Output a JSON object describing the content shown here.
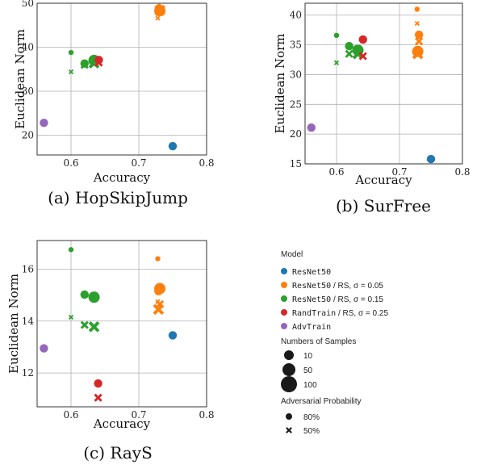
{
  "chart_data": [
    {
      "type": "scatter",
      "caption": "(a) HopSkipJump",
      "xlabel": "Accuracy",
      "ylabel": "Euclidean Norm",
      "xlim": [
        0.55,
        0.8
      ],
      "ylim": [
        15.5,
        50
      ],
      "xticks": [
        0.6,
        0.7,
        0.8
      ],
      "yticks": [
        20,
        30,
        40,
        50
      ],
      "grid": true,
      "points": [
        {
          "model": 0,
          "samples": 50,
          "prob": "80%",
          "x": 0.75,
          "y": 17.5
        },
        {
          "model": 4,
          "samples": 50,
          "prob": "80%",
          "x": 0.56,
          "y": 22.8
        },
        {
          "model": 1,
          "samples": 10,
          "prob": "80%",
          "x": 0.73,
          "y": 49.3
        },
        {
          "model": 1,
          "samples": 50,
          "prob": "80%",
          "x": 0.73,
          "y": 48.7
        },
        {
          "model": 1,
          "samples": 100,
          "prob": "80%",
          "x": 0.731,
          "y": 48.3
        },
        {
          "model": 1,
          "samples": 10,
          "prob": "50%",
          "x": 0.728,
          "y": 46.6
        },
        {
          "model": 1,
          "samples": 50,
          "prob": "50%",
          "x": 0.73,
          "y": 48.0
        },
        {
          "model": 1,
          "samples": 100,
          "prob": "50%",
          "x": 0.731,
          "y": 48.4
        },
        {
          "model": 2,
          "samples": 10,
          "prob": "80%",
          "x": 0.6,
          "y": 38.8
        },
        {
          "model": 2,
          "samples": 50,
          "prob": "80%",
          "x": 0.62,
          "y": 36.3
        },
        {
          "model": 2,
          "samples": 100,
          "prob": "80%",
          "x": 0.634,
          "y": 37.0
        },
        {
          "model": 2,
          "samples": 10,
          "prob": "50%",
          "x": 0.6,
          "y": 34.4
        },
        {
          "model": 2,
          "samples": 50,
          "prob": "50%",
          "x": 0.62,
          "y": 36.0
        },
        {
          "model": 2,
          "samples": 100,
          "prob": "50%",
          "x": 0.634,
          "y": 36.4
        },
        {
          "model": 3,
          "samples": 50,
          "prob": "80%",
          "x": 0.641,
          "y": 37.1
        },
        {
          "model": 3,
          "samples": 50,
          "prob": "50%",
          "x": 0.641,
          "y": 36.5
        }
      ]
    },
    {
      "type": "scatter",
      "caption": "(b) SurFree",
      "xlabel": "Accuracy",
      "ylabel": "Euclidean Norm",
      "xlim": [
        0.55,
        0.8
      ],
      "ylim": [
        15,
        42
      ],
      "xticks": [
        0.6,
        0.7,
        0.8
      ],
      "yticks": [
        15,
        20,
        25,
        30,
        35,
        40
      ],
      "grid": true,
      "points": [
        {
          "model": 0,
          "samples": 50,
          "prob": "80%",
          "x": 0.75,
          "y": 15.8
        },
        {
          "model": 4,
          "samples": 50,
          "prob": "80%",
          "x": 0.56,
          "y": 21.1
        },
        {
          "model": 1,
          "samples": 10,
          "prob": "80%",
          "x": 0.728,
          "y": 41.0
        },
        {
          "model": 1,
          "samples": 50,
          "prob": "80%",
          "x": 0.731,
          "y": 36.7
        },
        {
          "model": 1,
          "samples": 100,
          "prob": "80%",
          "x": 0.729,
          "y": 33.9
        },
        {
          "model": 1,
          "samples": 10,
          "prob": "50%",
          "x": 0.728,
          "y": 38.6
        },
        {
          "model": 1,
          "samples": 50,
          "prob": "50%",
          "x": 0.731,
          "y": 35.6
        },
        {
          "model": 1,
          "samples": 100,
          "prob": "50%",
          "x": 0.729,
          "y": 33.5
        },
        {
          "model": 2,
          "samples": 10,
          "prob": "80%",
          "x": 0.6,
          "y": 36.6
        },
        {
          "model": 2,
          "samples": 50,
          "prob": "80%",
          "x": 0.62,
          "y": 34.8
        },
        {
          "model": 2,
          "samples": 100,
          "prob": "80%",
          "x": 0.634,
          "y": 34.1
        },
        {
          "model": 2,
          "samples": 10,
          "prob": "50%",
          "x": 0.6,
          "y": 32.0
        },
        {
          "model": 2,
          "samples": 50,
          "prob": "50%",
          "x": 0.62,
          "y": 33.5
        },
        {
          "model": 2,
          "samples": 100,
          "prob": "50%",
          "x": 0.634,
          "y": 33.5
        },
        {
          "model": 3,
          "samples": 50,
          "prob": "80%",
          "x": 0.642,
          "y": 35.9
        },
        {
          "model": 3,
          "samples": 50,
          "prob": "50%",
          "x": 0.642,
          "y": 33.1
        }
      ]
    },
    {
      "type": "scatter",
      "caption": "(c) RayS",
      "xlabel": "Accuracy",
      "ylabel": "Euclidean Norm",
      "xlim": [
        0.55,
        0.8
      ],
      "ylim": [
        10.7,
        17.1
      ],
      "xticks": [
        0.6,
        0.7,
        0.8
      ],
      "yticks": [
        12,
        14,
        16
      ],
      "grid": true,
      "points": [
        {
          "model": 0,
          "samples": 50,
          "prob": "80%",
          "x": 0.75,
          "y": 13.45
        },
        {
          "model": 4,
          "samples": 50,
          "prob": "80%",
          "x": 0.56,
          "y": 12.95
        },
        {
          "model": 1,
          "samples": 10,
          "prob": "80%",
          "x": 0.728,
          "y": 16.4
        },
        {
          "model": 1,
          "samples": 50,
          "prob": "80%",
          "x": 0.729,
          "y": 15.15
        },
        {
          "model": 1,
          "samples": 100,
          "prob": "80%",
          "x": 0.731,
          "y": 15.25
        },
        {
          "model": 1,
          "samples": 10,
          "prob": "50%",
          "x": 0.728,
          "y": 14.75
        },
        {
          "model": 1,
          "samples": 50,
          "prob": "50%",
          "x": 0.731,
          "y": 14.65
        },
        {
          "model": 1,
          "samples": 100,
          "prob": "50%",
          "x": 0.729,
          "y": 14.45
        },
        {
          "model": 2,
          "samples": 10,
          "prob": "80%",
          "x": 0.6,
          "y": 16.75
        },
        {
          "model": 2,
          "samples": 50,
          "prob": "80%",
          "x": 0.62,
          "y": 15.02
        },
        {
          "model": 2,
          "samples": 100,
          "prob": "80%",
          "x": 0.634,
          "y": 14.92
        },
        {
          "model": 2,
          "samples": 10,
          "prob": "50%",
          "x": 0.6,
          "y": 14.15
        },
        {
          "model": 2,
          "samples": 50,
          "prob": "50%",
          "x": 0.62,
          "y": 13.85
        },
        {
          "model": 2,
          "samples": 100,
          "prob": "50%",
          "x": 0.634,
          "y": 13.78
        },
        {
          "model": 3,
          "samples": 50,
          "prob": "80%",
          "x": 0.64,
          "y": 11.6
        },
        {
          "model": 3,
          "samples": 50,
          "prob": "50%",
          "x": 0.64,
          "y": 11.05
        }
      ]
    }
  ],
  "legend": {
    "model_title": "Model",
    "models": [
      {
        "parts": [
          {
            "t": "ResNet50",
            "mono": true
          }
        ],
        "color": "#1f77b4"
      },
      {
        "parts": [
          {
            "t": "ResNet50",
            "mono": true
          },
          {
            "t": " / RS, σ = 0.05",
            "mono": false
          }
        ],
        "color": "#ff7f0e"
      },
      {
        "parts": [
          {
            "t": "ResNet50",
            "mono": true
          },
          {
            "t": " / RS, σ = 0.15",
            "mono": false
          }
        ],
        "color": "#2ca02c"
      },
      {
        "parts": [
          {
            "t": "RandTrain",
            "mono": true
          },
          {
            "t": " / RS, σ = 0.25",
            "mono": false
          }
        ],
        "color": "#d62728"
      },
      {
        "parts": [
          {
            "t": "AdvTrain",
            "mono": true
          }
        ],
        "color": "#9467bd"
      }
    ],
    "samples_title": "Numbers of Samples",
    "samples": [
      "10",
      "50",
      "100"
    ],
    "prob_title": "Adversarial Probability",
    "probs": [
      "80%",
      "50%"
    ]
  }
}
